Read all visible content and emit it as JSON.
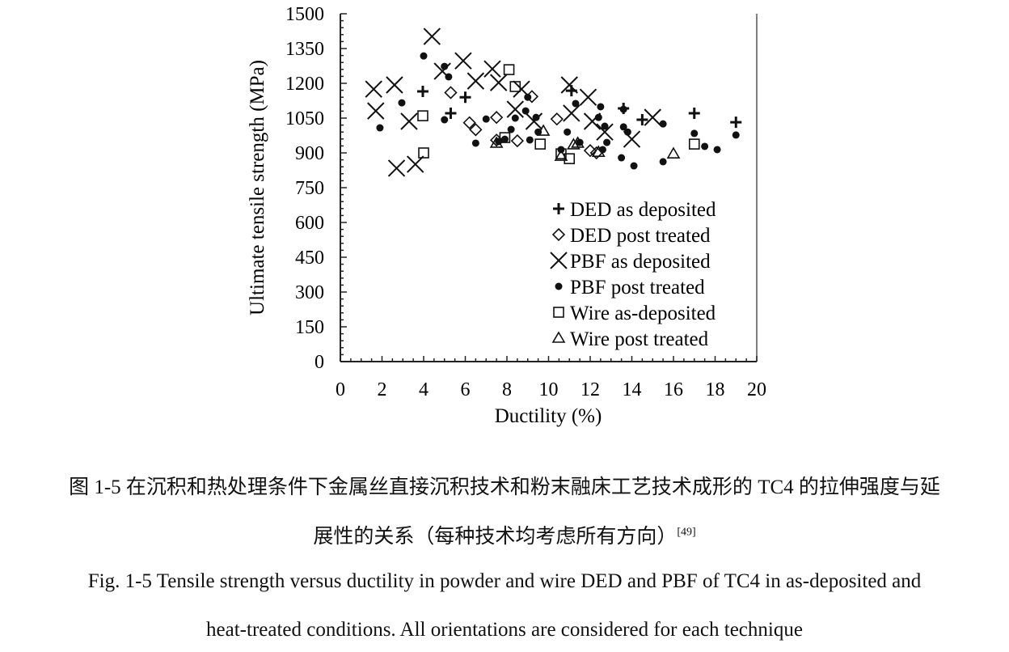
{
  "chart_data": {
    "type": "scatter",
    "xlabel": "Ductility (%)",
    "ylabel": "Ultimate tensile strength (MPa)",
    "xlim": [
      0,
      20
    ],
    "ylim": [
      0,
      1500
    ],
    "xticks": [
      0,
      2,
      4,
      6,
      8,
      10,
      12,
      14,
      16,
      18,
      20
    ],
    "yticks": [
      0,
      150,
      300,
      450,
      600,
      750,
      900,
      1050,
      1200,
      1350,
      1500
    ],
    "grid": false,
    "legend": "center-right",
    "series": [
      {
        "name": "DED as deposited",
        "marker": "plus",
        "points": [
          [
            3.96,
            1165
          ],
          [
            5.3,
            1071
          ],
          [
            6.0,
            1140
          ],
          [
            11.1,
            1168
          ],
          [
            13.6,
            1092
          ],
          [
            14.5,
            1043
          ],
          [
            17.0,
            1071
          ],
          [
            19.0,
            1032
          ]
        ]
      },
      {
        "name": "DED post treated",
        "marker": "diamond",
        "points": [
          [
            5.3,
            1160
          ],
          [
            6.2,
            1030
          ],
          [
            6.5,
            1000
          ],
          [
            7.5,
            1053
          ],
          [
            7.5,
            955
          ],
          [
            8.5,
            952
          ],
          [
            9.2,
            1143
          ],
          [
            10.4,
            1046
          ],
          [
            12.0,
            910
          ],
          [
            12.3,
            900
          ]
        ]
      },
      {
        "name": "PBF as deposited",
        "marker": "x",
        "points": [
          [
            1.6,
            1175
          ],
          [
            1.7,
            1081
          ],
          [
            2.6,
            1193
          ],
          [
            3.3,
            1036
          ],
          [
            2.7,
            834
          ],
          [
            3.6,
            851
          ],
          [
            4.4,
            1402
          ],
          [
            4.9,
            1252
          ],
          [
            5.9,
            1297
          ],
          [
            6.5,
            1210
          ],
          [
            7.3,
            1262
          ],
          [
            7.6,
            1203
          ],
          [
            8.4,
            1088
          ],
          [
            8.7,
            1175
          ],
          [
            9.3,
            1036
          ],
          [
            11.0,
            1193
          ],
          [
            11.1,
            1071
          ],
          [
            11.9,
            1140
          ],
          [
            12.1,
            1036
          ],
          [
            12.7,
            990
          ],
          [
            14.0,
            959
          ],
          [
            15.0,
            1053
          ]
        ]
      },
      {
        "name": "PBF post treated",
        "marker": "dot",
        "points": [
          [
            1.9,
            1008
          ],
          [
            2.95,
            1116
          ],
          [
            4.0,
            1318
          ],
          [
            5.0,
            1273
          ],
          [
            5.0,
            1043
          ],
          [
            5.2,
            1228
          ],
          [
            6.5,
            942
          ],
          [
            7.0,
            1046
          ],
          [
            7.6,
            949
          ],
          [
            7.9,
            959
          ],
          [
            8.2,
            1001
          ],
          [
            8.4,
            1050
          ],
          [
            8.9,
            1081
          ],
          [
            9.0,
            1140
          ],
          [
            9.1,
            956
          ],
          [
            9.4,
            1053
          ],
          [
            9.5,
            990
          ],
          [
            10.6,
            914
          ],
          [
            10.9,
            990
          ],
          [
            11.3,
            1113
          ],
          [
            11.5,
            945
          ],
          [
            12.4,
            1053
          ],
          [
            12.5,
            1099
          ],
          [
            12.7,
            1015
          ],
          [
            12.8,
            945
          ],
          [
            12.6,
            914
          ],
          [
            13.5,
            879
          ],
          [
            13.6,
            1012
          ],
          [
            13.6,
            1088
          ],
          [
            13.8,
            990
          ],
          [
            14.1,
            844
          ],
          [
            15.5,
            1025
          ],
          [
            15.5,
            862
          ],
          [
            17.0,
            984
          ],
          [
            17.5,
            928
          ],
          [
            18.1,
            914
          ],
          [
            19.0,
            977
          ]
        ]
      },
      {
        "name": "Wire as-deposited",
        "marker": "square",
        "points": [
          [
            3.96,
            1060
          ],
          [
            4.0,
            900
          ],
          [
            8.1,
            1259
          ],
          [
            8.4,
            1186
          ],
          [
            7.9,
            966
          ],
          [
            9.6,
            938
          ],
          [
            11.0,
            875
          ],
          [
            10.6,
            896
          ],
          [
            17.0,
            938
          ]
        ]
      },
      {
        "name": "Wire post treated",
        "marker": "triangle",
        "points": [
          [
            7.5,
            942
          ],
          [
            9.75,
            994
          ],
          [
            10.6,
            886
          ],
          [
            11.2,
            935
          ],
          [
            11.4,
            942
          ],
          [
            12.4,
            903
          ],
          [
            16.0,
            896
          ]
        ]
      }
    ]
  },
  "caption": {
    "zh_line1": "图 1-5  在沉积和热处理条件下金属丝直接沉积技术和粉末融床工艺技术成形的 TC4 的拉伸强度与延",
    "zh_line2": "展性的关系（每种技术均考虑所有方向）",
    "zh_ref": "[49]",
    "en_line1": "Fig. 1-5 Tensile strength versus ductility in powder and wire DED and PBF of TC4 in as-deposited and",
    "en_line2": "heat-treated conditions. All orientations are considered for each technique"
  }
}
